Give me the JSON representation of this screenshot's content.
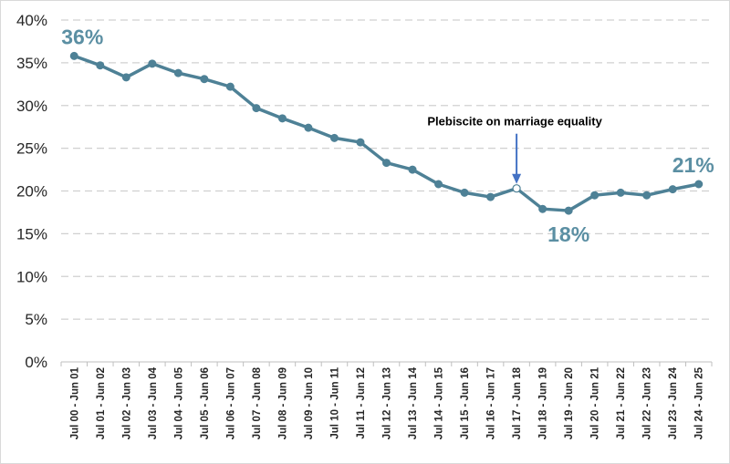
{
  "chart_data": {
    "type": "line",
    "title": "",
    "xlabel": "",
    "ylabel": "",
    "ylim": [
      0,
      40
    ],
    "yticks": [
      "0%",
      "5%",
      "10%",
      "15%",
      "20%",
      "25%",
      "30%",
      "35%",
      "40%"
    ],
    "grid": true,
    "categories": [
      "Jul 00 - Jun 01",
      "Jul 01 - Jun 02",
      "Jul 02 - Jun 03",
      "Jul 03 - Jun 04",
      "Jul 04 - Jun 05",
      "Jul 05 - Jun 06",
      "Jul 06 - Jun 07",
      "Jul 07 - Jun 08",
      "Jul 08 - Jun 09",
      "Jul 09 - Jun 10",
      "Jul 10 - Jun 11",
      "Jul 11 - Jun 12",
      "Jul 12 - Jun 13",
      "Jul 13 - Jun 14",
      "Jul 14 - Jun 15",
      "Jul 15 - Jun 16",
      "Jul 16 - Jun 17",
      "Jul 17 - Jun 18",
      "Jul 18 - Jun 19",
      "Jul 19 - Jun 20",
      "Jul 20 - Jun 21",
      "Jul 21 - Jun 22",
      "Jul 22 - Jun 23",
      "Jul 23 - Jun 24",
      "Jul 24 - Jun 25"
    ],
    "values": [
      35.8,
      34.7,
      33.3,
      34.9,
      33.8,
      33.1,
      32.2,
      29.7,
      28.5,
      27.4,
      26.2,
      25.7,
      23.3,
      22.5,
      20.8,
      19.8,
      19.3,
      20.3,
      17.9,
      17.7,
      19.5,
      19.8,
      19.5,
      20.2,
      20.8
    ],
    "color": "#4e8196",
    "data_labels": [
      {
        "index": 0,
        "text": "36%"
      },
      {
        "index": 19,
        "text": "18%"
      },
      {
        "index": 24,
        "text": "21%"
      }
    ],
    "annotation": {
      "index": 17,
      "text": "Plebiscite on marriage equality"
    }
  }
}
